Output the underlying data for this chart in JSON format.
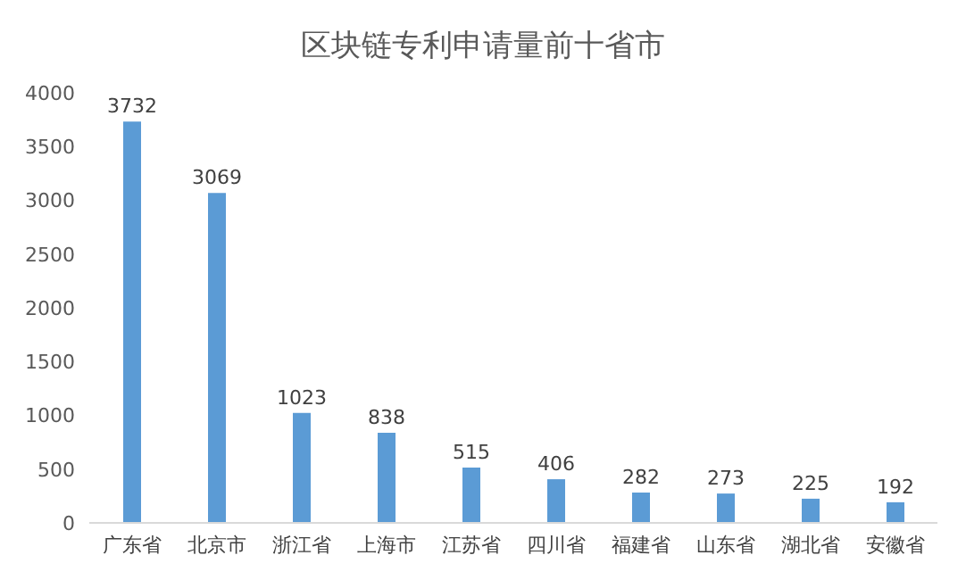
{
  "chart_data": {
    "type": "bar",
    "title": "区块链专利申请量前十省市",
    "categories": [
      "广东省",
      "北京市",
      "浙江省",
      "上海市",
      "江苏省",
      "四川省",
      "福建省",
      "山东省",
      "湖北省",
      "安徽省"
    ],
    "values": [
      3732,
      3069,
      1023,
      838,
      515,
      406,
      282,
      273,
      225,
      192
    ],
    "color": "#5b9bd5",
    "ylim": [
      0,
      4000
    ],
    "yticks": [
      0,
      500,
      1000,
      1500,
      2000,
      2500,
      3000,
      3500,
      4000
    ],
    "data_labels": true,
    "grid": false
  }
}
